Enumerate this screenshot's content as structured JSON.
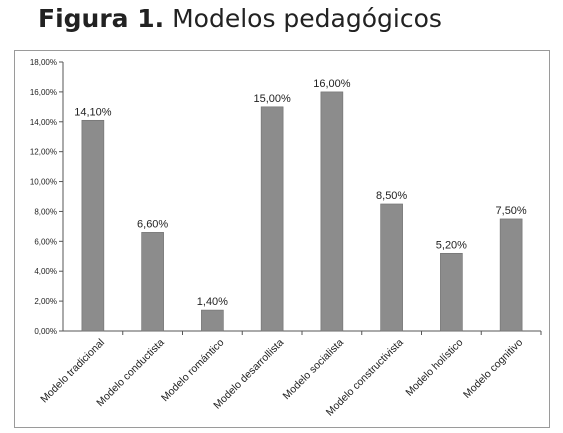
{
  "figure": {
    "label": "Figura 1.",
    "title": "Modelos pedagógicos"
  },
  "chart_data": {
    "type": "bar",
    "categories": [
      "Modelo tradicional",
      "Modelo conductista",
      "Modelo romántico",
      "Modelo desarrollista",
      "Modelo socialista",
      "Modelo constructivista",
      "Modelo holístico",
      "Modelo cognitivo"
    ],
    "values": [
      14.1,
      6.6,
      1.4,
      15.0,
      16.0,
      8.5,
      5.2,
      7.5
    ],
    "value_labels": [
      "14,10%",
      "6,60%",
      "1,40%",
      "15,00%",
      "16,00%",
      "8,50%",
      "5,20%",
      "7,50%"
    ],
    "yticks": [
      "0,00%",
      "2,00%",
      "4,00%",
      "6,00%",
      "8,00%",
      "10,00%",
      "12,00%",
      "14,00%",
      "16,00%",
      "18,00%"
    ],
    "ylim": [
      0,
      18
    ],
    "grid": false,
    "legend": "none",
    "colors": {
      "bar": "#8c8c8c",
      "bar_edge": "#6e6e6e",
      "axis": "#555555",
      "text": "#222222"
    }
  }
}
